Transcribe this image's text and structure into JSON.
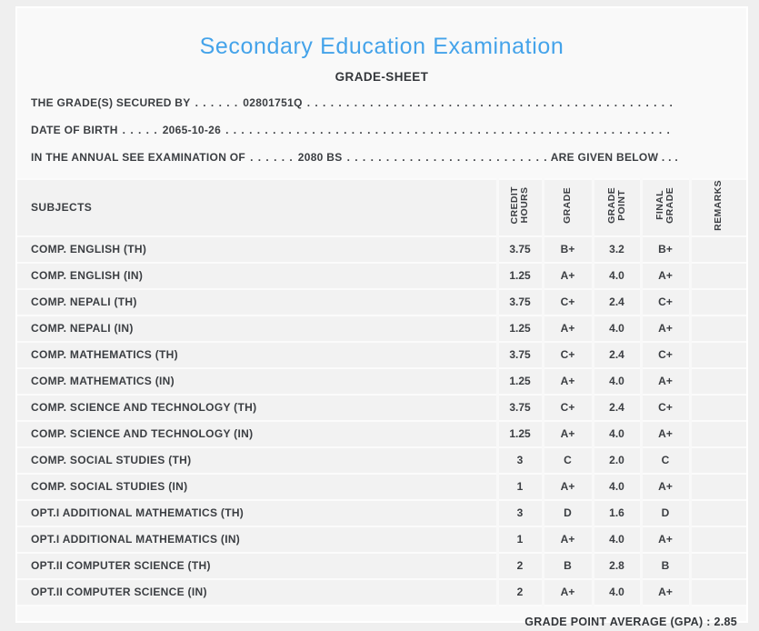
{
  "accent_blue": "#44a3ea",
  "header": {
    "title": "Secondary Education Examination",
    "subtitle": "GRADE-SHEET"
  },
  "leader_dots": ". . . . . . . . . . . . . . . . . . . . . . . . . . . . . . . . . . . . . . . . . . . . . . . . . . . . . . . . . . . . . . . . . . . . . . . . . . . . . . . . . . . . . . . . . . . . . . . . . . . . . . . .",
  "info_lines": [
    {
      "prefix": "THE GRADE(S) SECURED BY",
      "dots": ". . . . . .",
      "value": "02801751Q",
      "suffix": ""
    },
    {
      "prefix": "DATE OF BIRTH",
      "dots": ". . . . .",
      "value": "2065-10-26",
      "suffix": ""
    },
    {
      "prefix": "IN THE ANNUAL SEE EXAMINATION OF",
      "dots": ". . . . . .",
      "value": "2080 BS",
      "suffix": "ARE GIVEN BELOW . . ."
    }
  ],
  "table": {
    "subjects_header": "SUBJECTS",
    "columns": [
      "CREDIT\nHOURS",
      "GRADE",
      "GRADE\nPOINT",
      "FINAL\nGRADE",
      "REMARKS"
    ],
    "rows": [
      {
        "subject": "COMP. ENGLISH (TH)",
        "credit": "3.75",
        "grade": "B+",
        "point": "3.2",
        "final": "B+",
        "remarks": ""
      },
      {
        "subject": "COMP. ENGLISH (IN)",
        "credit": "1.25",
        "grade": "A+",
        "point": "4.0",
        "final": "A+",
        "remarks": ""
      },
      {
        "subject": "COMP. NEPALI (TH)",
        "credit": "3.75",
        "grade": "C+",
        "point": "2.4",
        "final": "C+",
        "remarks": ""
      },
      {
        "subject": "COMP. NEPALI (IN)",
        "credit": "1.25",
        "grade": "A+",
        "point": "4.0",
        "final": "A+",
        "remarks": ""
      },
      {
        "subject": "COMP. MATHEMATICS (TH)",
        "credit": "3.75",
        "grade": "C+",
        "point": "2.4",
        "final": "C+",
        "remarks": ""
      },
      {
        "subject": "COMP. MATHEMATICS (IN)",
        "credit": "1.25",
        "grade": "A+",
        "point": "4.0",
        "final": "A+",
        "remarks": ""
      },
      {
        "subject": "COMP. SCIENCE AND TECHNOLOGY (TH)",
        "credit": "3.75",
        "grade": "C+",
        "point": "2.4",
        "final": "C+",
        "remarks": ""
      },
      {
        "subject": "COMP. SCIENCE AND TECHNOLOGY (IN)",
        "credit": "1.25",
        "grade": "A+",
        "point": "4.0",
        "final": "A+",
        "remarks": ""
      },
      {
        "subject": "COMP. SOCIAL STUDIES (TH)",
        "credit": "3",
        "grade": "C",
        "point": "2.0",
        "final": "C",
        "remarks": ""
      },
      {
        "subject": "COMP. SOCIAL STUDIES (IN)",
        "credit": "1",
        "grade": "A+",
        "point": "4.0",
        "final": "A+",
        "remarks": ""
      },
      {
        "subject": "OPT.I ADDITIONAL MATHEMATICS (TH)",
        "credit": "3",
        "grade": "D",
        "point": "1.6",
        "final": "D",
        "remarks": ""
      },
      {
        "subject": "OPT.I ADDITIONAL MATHEMATICS (IN)",
        "credit": "1",
        "grade": "A+",
        "point": "4.0",
        "final": "A+",
        "remarks": ""
      },
      {
        "subject": "OPT.II COMPUTER SCIENCE (TH)",
        "credit": "2",
        "grade": "B",
        "point": "2.8",
        "final": "B",
        "remarks": ""
      },
      {
        "subject": "OPT.II COMPUTER SCIENCE (IN)",
        "credit": "2",
        "grade": "A+",
        "point": "4.0",
        "final": "A+",
        "remarks": ""
      }
    ],
    "footer": {
      "gpa_label": "GRADE POINT AVERAGE (GPA) :",
      "gpa_value": "2.85"
    }
  }
}
